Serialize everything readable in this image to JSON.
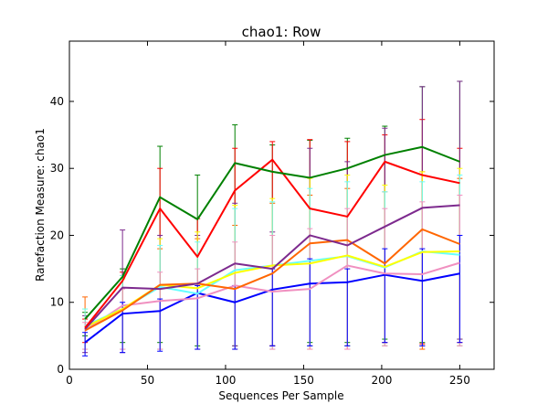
{
  "chart_data": {
    "type": "line",
    "title": "chao1: Row",
    "xlabel": "Sequences Per Sample",
    "ylabel": "Rarefaction Measure: chao1",
    "xlim": [
      0,
      272
    ],
    "ylim": [
      0,
      49
    ],
    "x_ticks": [
      0,
      50,
      100,
      150,
      200,
      250
    ],
    "y_ticks": [
      0,
      10,
      20,
      30,
      40
    ],
    "grid": false,
    "x": [
      10,
      34,
      58,
      82,
      106,
      130,
      154,
      178,
      202,
      226,
      250
    ],
    "series": [
      {
        "color": "#008000",
        "values": [
          7.5,
          13.8,
          25.7,
          22.4,
          30.8,
          29.5,
          28.6,
          30.0,
          32.0,
          33.2,
          31.0
        ],
        "err_upper": [
          8.5,
          15.0,
          33.3,
          29.0,
          36.5,
          33.5,
          34.2,
          34.5,
          36.3,
          42.2,
          43.0
        ],
        "err_lower": [
          5.0,
          4.0,
          4.0,
          3.5,
          3.5,
          3.5,
          4.0,
          4.0,
          4.5,
          4.0,
          4.5
        ]
      },
      {
        "color": "#ff0000",
        "values": [
          6.2,
          13.2,
          24.0,
          16.8,
          26.7,
          31.3,
          24.0,
          22.8,
          31.0,
          29.0,
          27.8
        ],
        "err_upper": [
          7.5,
          14.5,
          30.0,
          22.5,
          33.0,
          34.0,
          34.3,
          34.0,
          35.0,
          37.3,
          33.0
        ],
        "err_lower": [
          4.0,
          3.0,
          3.0,
          3.0,
          3.0,
          3.5,
          3.5,
          3.5,
          4.0,
          3.8,
          4.0
        ]
      },
      {
        "color": "#7d2a8e",
        "values": [
          6.0,
          12.2,
          12.0,
          12.8,
          15.8,
          15.0,
          20.0,
          18.5,
          21.3,
          24.1,
          24.5
        ],
        "err_upper": [
          8.0,
          20.8,
          20.0,
          20.0,
          24.8,
          20.5,
          33.0,
          31.0,
          36.0,
          42.2,
          43.0
        ],
        "err_lower": [
          2.5,
          2.5,
          3.0,
          3.0,
          3.5,
          3.5,
          3.5,
          3.5,
          4.0,
          3.5,
          4.5
        ]
      },
      {
        "color": "#ff6600",
        "values": [
          5.8,
          8.8,
          12.6,
          12.8,
          12.0,
          14.3,
          18.8,
          19.3,
          15.8,
          20.9,
          18.7
        ],
        "err_upper": [
          10.8,
          14.0,
          18.0,
          19.5,
          21.5,
          24.8,
          26.0,
          27.0,
          26.5,
          29.5,
          28.5
        ],
        "err_lower": [
          3.0,
          3.0,
          3.0,
          3.0,
          3.0,
          3.0,
          3.0,
          3.0,
          3.5,
          3.0,
          3.5
        ]
      },
      {
        "color": "#ffff00",
        "values": [
          6.3,
          9.0,
          12.6,
          12.1,
          14.4,
          15.5,
          15.8,
          17.0,
          15.3,
          17.5,
          17.6
        ],
        "err_upper": [
          9.0,
          13.5,
          19.5,
          20.5,
          24.5,
          25.5,
          28.5,
          29.0,
          27.5,
          29.5,
          30.0
        ],
        "err_lower": [
          3.0,
          3.0,
          3.0,
          3.0,
          3.0,
          3.0,
          3.0,
          3.5,
          3.5,
          3.5,
          3.5
        ]
      },
      {
        "color": "#66ffff",
        "values": [
          6.5,
          9.0,
          12.3,
          11.3,
          14.8,
          15.5,
          16.2,
          16.9,
          15.2,
          17.6,
          17.1
        ],
        "err_upper": [
          9.0,
          14.0,
          18.5,
          19.0,
          24.0,
          25.0,
          27.0,
          28.0,
          26.5,
          28.0,
          29.0
        ],
        "err_lower": [
          3.0,
          3.0,
          3.0,
          3.0,
          3.0,
          3.0,
          3.5,
          3.5,
          3.5,
          3.5,
          3.5
        ]
      },
      {
        "color": "#f090c0",
        "values": [
          5.8,
          9.5,
          10.2,
          10.6,
          12.5,
          11.6,
          12.0,
          15.5,
          14.3,
          14.2,
          15.9
        ],
        "err_upper": [
          7.0,
          12.0,
          14.5,
          15.0,
          19.0,
          20.0,
          21.0,
          24.0,
          24.0,
          25.0,
          26.0
        ],
        "err_lower": [
          3.0,
          3.0,
          3.0,
          3.0,
          3.0,
          3.0,
          3.0,
          3.0,
          3.5,
          3.5,
          3.5
        ]
      },
      {
        "color": "#0000ff",
        "values": [
          4.0,
          8.3,
          8.7,
          11.4,
          10.0,
          11.9,
          12.8,
          13.0,
          14.1,
          13.2,
          14.3
        ],
        "err_upper": [
          5.5,
          10.0,
          10.5,
          12.5,
          12.5,
          15.0,
          16.5,
          15.0,
          18.0,
          18.0,
          20.0
        ],
        "err_lower": [
          2.0,
          2.5,
          2.7,
          3.0,
          3.0,
          3.5,
          3.5,
          3.5,
          4.0,
          3.5,
          4.0
        ]
      }
    ]
  }
}
